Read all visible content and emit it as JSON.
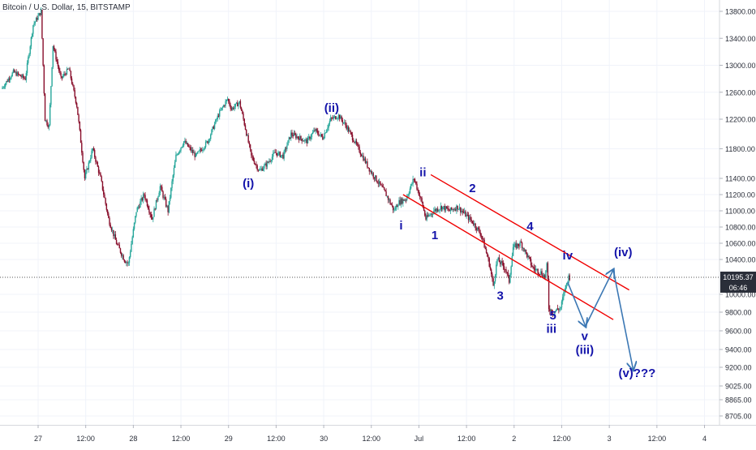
{
  "header": {
    "title": "Bitcoin / U.S. Dollar, 15, BITSTAMP"
  },
  "chart_data": {
    "type": "candlestick",
    "symbol": "Bitcoin / U.S. Dollar",
    "interval": "15",
    "exchange": "BITSTAMP",
    "y_ticks": [
      13800,
      13400,
      13000,
      12600,
      12200,
      11800,
      11400,
      11200,
      11000,
      10800,
      10600,
      10400,
      10000,
      9800,
      9600,
      9400,
      9200,
      9025,
      8865,
      8705
    ],
    "y_tick_labels": [
      "13800.00",
      "13400.00",
      "13000.00",
      "12600.00",
      "12200.00",
      "11800.00",
      "11400.00",
      "11200.00",
      "11000.00",
      "10800.00",
      "10600.00",
      "10400.00",
      "10000.00",
      "9800.00",
      "9600.00",
      "9400.00",
      "9200.00",
      "9025.00",
      "8865.00",
      "8705.00"
    ],
    "x_ticks": [
      {
        "label": "27",
        "t": 0
      },
      {
        "label": "12:00",
        "t": 12
      },
      {
        "label": "28",
        "t": 24
      },
      {
        "label": "12:00",
        "t": 36
      },
      {
        "label": "29",
        "t": 48
      },
      {
        "label": "12:00",
        "t": 60
      },
      {
        "label": "30",
        "t": 72
      },
      {
        "label": "12:00",
        "t": 84
      },
      {
        "label": "Jul",
        "t": 96
      },
      {
        "label": "12:00",
        "t": 108
      },
      {
        "label": "2",
        "t": 120
      },
      {
        "label": "12:00",
        "t": 132
      },
      {
        "label": "3",
        "t": 144
      },
      {
        "label": "12:00",
        "t": 156
      },
      {
        "label": "4",
        "t": 168
      }
    ],
    "price_path": [
      [
        -9,
        12650
      ],
      [
        -6,
        12900
      ],
      [
        -3,
        12800
      ],
      [
        -1,
        13600
      ],
      [
        1,
        13800
      ],
      [
        2,
        12200
      ],
      [
        3,
        12100
      ],
      [
        4,
        13300
      ],
      [
        6,
        12800
      ],
      [
        8,
        12950
      ],
      [
        10,
        12400
      ],
      [
        12,
        11400
      ],
      [
        14,
        11800
      ],
      [
        16,
        11400
      ],
      [
        18,
        10900
      ],
      [
        20,
        10600
      ],
      [
        22,
        10400
      ],
      [
        23,
        10350
      ],
      [
        25,
        11000
      ],
      [
        27,
        11200
      ],
      [
        29,
        10900
      ],
      [
        31,
        11300
      ],
      [
        33,
        11000
      ],
      [
        35,
        11700
      ],
      [
        37,
        11900
      ],
      [
        40,
        11700
      ],
      [
        43,
        11900
      ],
      [
        46,
        12300
      ],
      [
        48,
        12500
      ],
      [
        49,
        12350
      ],
      [
        51,
        12450
      ],
      [
        52,
        12200
      ],
      [
        54,
        11700
      ],
      [
        56,
        11500
      ],
      [
        58,
        11600
      ],
      [
        60,
        11750
      ],
      [
        62,
        11700
      ],
      [
        64,
        12000
      ],
      [
        66,
        11950
      ],
      [
        68,
        11900
      ],
      [
        70,
        12050
      ],
      [
        72,
        11950
      ],
      [
        74,
        12200
      ],
      [
        76,
        12250
      ],
      [
        78,
        12100
      ],
      [
        80,
        11900
      ],
      [
        82,
        11700
      ],
      [
        84,
        11500
      ],
      [
        86,
        11350
      ],
      [
        88,
        11200
      ],
      [
        90,
        11000
      ],
      [
        91,
        11100
      ],
      [
        93,
        11150
      ],
      [
        95,
        11400
      ],
      [
        97,
        11100
      ],
      [
        98,
        10900
      ],
      [
        100,
        11000
      ],
      [
        102,
        11050
      ],
      [
        104,
        11000
      ],
      [
        106,
        11050
      ],
      [
        108,
        10950
      ],
      [
        110,
        10850
      ],
      [
        112,
        10700
      ],
      [
        114,
        10350
      ],
      [
        115,
        10100
      ],
      [
        116,
        10400
      ],
      [
        118,
        10300
      ],
      [
        119,
        10150
      ],
      [
        120,
        10550
      ],
      [
        122,
        10600
      ],
      [
        123,
        10500
      ],
      [
        125,
        10300
      ],
      [
        127,
        10250
      ],
      [
        128,
        10200
      ],
      [
        128.6,
        10350
      ],
      [
        129,
        9850
      ],
      [
        130,
        9800
      ],
      [
        132,
        9850
      ],
      [
        133,
        10050
      ],
      [
        134,
        10200
      ]
    ],
    "channel_lines": [
      {
        "color": "#f00000",
        "from": [
          99,
          11450
        ],
        "to": [
          149,
          10050
        ]
      },
      {
        "color": "#f00000",
        "from": [
          92,
          11200
        ],
        "to": [
          145,
          9720
        ]
      }
    ],
    "projection": {
      "color": "#3c78b4",
      "points": [
        [
          133.5,
          10140
        ],
        [
          138,
          9650
        ],
        [
          145,
          10280
        ],
        [
          150,
          9180
        ]
      ]
    },
    "wave_labels": [
      {
        "text": "(i)",
        "t": 53,
        "price": 11290,
        "color": "#1414aa"
      },
      {
        "text": "(ii)",
        "t": 74,
        "price": 12310,
        "color": "#1414aa"
      },
      {
        "text": "ii",
        "t": 97,
        "price": 11430,
        "color": "#1414aa"
      },
      {
        "text": "2",
        "t": 109.5,
        "price": 11230,
        "color": "#1414aa"
      },
      {
        "text": "i",
        "t": 91.5,
        "price": 10770,
        "color": "#1414aa"
      },
      {
        "text": "1",
        "t": 100,
        "price": 10650,
        "color": "#1414aa"
      },
      {
        "text": "4",
        "t": 124,
        "price": 10760,
        "color": "#1414aa"
      },
      {
        "text": "3",
        "t": 116.5,
        "price": 9940,
        "color": "#1414aa"
      },
      {
        "text": "5",
        "t": 129.8,
        "price": 9720,
        "color": "#1414aa"
      },
      {
        "text": "iii",
        "t": 129.4,
        "price": 9580,
        "color": "#1414aa"
      },
      {
        "text": "iv",
        "t": 133.5,
        "price": 10400,
        "color": "#1414aa"
      },
      {
        "text": "(iv)",
        "t": 147.5,
        "price": 10440,
        "color": "#1414aa"
      },
      {
        "text": "v",
        "t": 137.8,
        "price": 9500,
        "color": "#1414aa"
      },
      {
        "text": "(iii)",
        "t": 137.8,
        "price": 9350,
        "color": "#1414aa"
      },
      {
        "text": "(v)???",
        "t": 151,
        "price": 9110,
        "color": "#1414aa"
      }
    ],
    "last_price": {
      "value": "10195.37",
      "price": 10195.37,
      "countdown": "06:46",
      "color": "#2a2e39"
    },
    "colors": {
      "up": "#26a69a",
      "down": "#880e2b",
      "background": "#ffffff",
      "grid": "#f0f3fa"
    },
    "grid": true
  }
}
